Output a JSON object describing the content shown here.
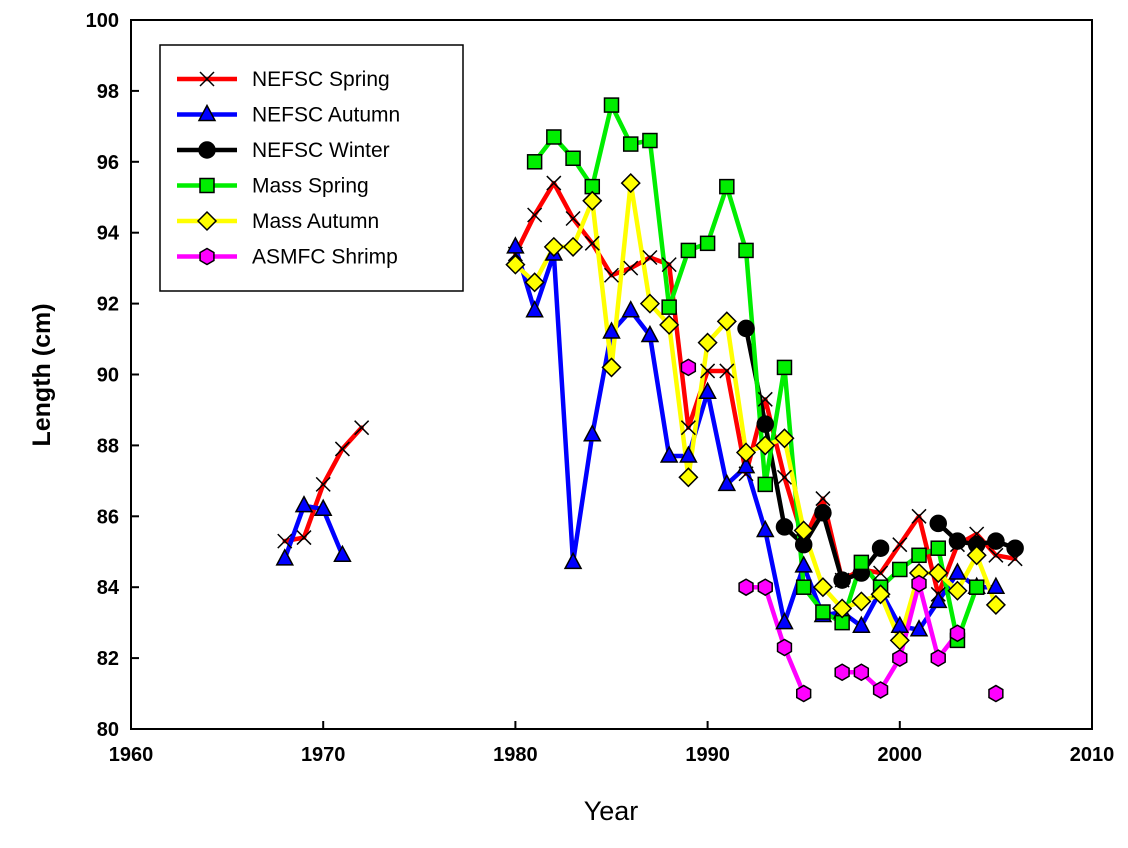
{
  "chart_data": {
    "type": "line",
    "xlabel": "Year",
    "ylabel": "Length (cm)",
    "xlim": [
      1960,
      2010
    ],
    "ylim": [
      80,
      100
    ],
    "x_ticks": [
      1960,
      1970,
      1980,
      1990,
      2000,
      2010
    ],
    "y_ticks": [
      80,
      82,
      84,
      86,
      88,
      90,
      92,
      94,
      96,
      98,
      100
    ],
    "grid": false,
    "legend_position": "top-left",
    "series": [
      {
        "name": "NEFSC Spring",
        "color": "#ff0000",
        "marker": "x",
        "x": [
          1968,
          1969,
          1970,
          1971,
          1972,
          null,
          1980,
          1981,
          1982,
          1983,
          1984,
          1985,
          1986,
          1987,
          1988,
          1989,
          1990,
          1991,
          1992,
          1993,
          1994,
          1995,
          1996,
          1997,
          1998,
          1999,
          2000,
          2001,
          2002,
          2003,
          2004,
          2005,
          2006
        ],
        "y": [
          85.3,
          85.4,
          86.9,
          87.9,
          88.5,
          null,
          93.4,
          94.5,
          95.4,
          94.4,
          93.7,
          92.8,
          93.0,
          93.3,
          93.1,
          88.5,
          90.1,
          90.1,
          87.2,
          89.3,
          87.1,
          85.3,
          86.5,
          84.2,
          84.5,
          84.4,
          85.2,
          86.0,
          83.8,
          85.2,
          85.5,
          84.9,
          84.8
        ]
      },
      {
        "name": "NEFSC Autumn",
        "color": "#0000ff",
        "marker": "triangle",
        "x": [
          1968,
          1969,
          1970,
          1971,
          null,
          1980,
          1981,
          1982,
          1983,
          1984,
          1985,
          1986,
          1987,
          1988,
          1989,
          1990,
          1991,
          1992,
          1993,
          1994,
          1995,
          1996,
          1997,
          1998,
          1999,
          2000,
          2001,
          2002,
          2003,
          2004,
          2005
        ],
        "y": [
          84.8,
          86.3,
          86.2,
          84.9,
          null,
          93.6,
          91.8,
          93.4,
          84.7,
          88.3,
          91.2,
          91.8,
          91.1,
          87.7,
          87.7,
          89.5,
          86.9,
          87.4,
          85.6,
          83.0,
          84.6,
          83.2,
          83.3,
          82.9,
          83.9,
          82.9,
          82.8,
          83.6,
          84.4,
          84.0,
          84.0
        ]
      },
      {
        "name": "NEFSC Winter",
        "color": "#000000",
        "marker": "circle",
        "x": [
          1992,
          1993,
          1994,
          1995,
          1996,
          1997,
          1998,
          1999,
          2000,
          2001,
          2002,
          2003,
          2004,
          2005,
          2006
        ],
        "y": [
          91.3,
          88.6,
          85.7,
          85.2,
          86.1,
          84.2,
          84.4,
          85.1,
          null,
          null,
          85.8,
          85.3,
          85.2,
          85.3,
          85.1
        ]
      },
      {
        "name": "Mass Spring",
        "color": "#00ee00",
        "marker": "square",
        "x": [
          1981,
          1982,
          1983,
          1984,
          1985,
          1986,
          1987,
          1988,
          1989,
          1990,
          1991,
          1992,
          1993,
          1994,
          1995,
          1996,
          1997,
          1998,
          1999,
          2000,
          2001,
          2002,
          2003,
          2004
        ],
        "y": [
          96.0,
          96.7,
          96.1,
          95.3,
          97.6,
          96.5,
          96.6,
          91.9,
          93.5,
          93.7,
          95.3,
          93.5,
          86.9,
          90.2,
          84.0,
          83.3,
          83.0,
          84.7,
          84.0,
          84.5,
          84.9,
          85.1,
          82.5,
          84.0
        ]
      },
      {
        "name": "Mass Autumn",
        "color": "#ffff00",
        "marker": "diamond",
        "x": [
          1980,
          1981,
          1982,
          1983,
          1984,
          1985,
          1986,
          1987,
          1988,
          1989,
          1990,
          1991,
          1992,
          1993,
          1994,
          1995,
          1996,
          1997,
          1998,
          1999,
          2000,
          2001,
          2002,
          2003,
          2004,
          2005
        ],
        "y": [
          93.1,
          92.6,
          93.6,
          93.6,
          94.9,
          90.2,
          95.4,
          92.0,
          91.4,
          87.1,
          90.9,
          91.5,
          87.8,
          88.0,
          88.2,
          85.6,
          84.0,
          83.4,
          83.6,
          83.8,
          82.5,
          84.4,
          84.4,
          83.9,
          84.9,
          83.5
        ]
      },
      {
        "name": "ASMFC Shrimp",
        "color": "#ff00ff",
        "marker": "hexagon",
        "x": [
          1989,
          null,
          1992,
          1993,
          1994,
          1995,
          null,
          1997,
          1998,
          1999,
          2000,
          2001,
          2002,
          2003,
          null,
          2005
        ],
        "y": [
          90.2,
          null,
          84.0,
          84.0,
          82.3,
          81.0,
          null,
          81.6,
          81.6,
          81.1,
          82.0,
          84.1,
          82.0,
          82.7,
          null,
          81.0
        ]
      }
    ]
  }
}
